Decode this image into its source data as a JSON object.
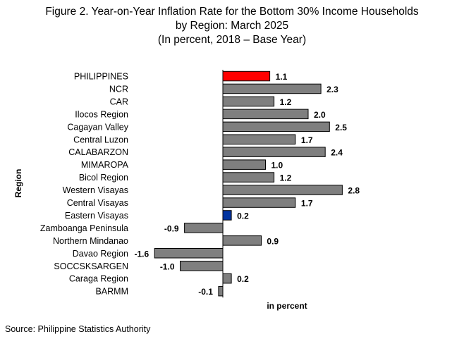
{
  "title_lines": [
    "Figure 2. Year-on-Year Inflation Rate for the Bottom 30% Income Households",
    "by Region: March 2025",
    "(In percent, 2018 – Base Year)"
  ],
  "source": "Source: Philippine Statistics Authority",
  "chart_data": {
    "type": "bar",
    "orientation": "horizontal",
    "title": "Figure 2. Year-on-Year Inflation Rate for the Bottom 30% Income Households by Region: March 2025 (In percent, 2018 – Base Year)",
    "xlabel": "in percent",
    "ylabel": "Region",
    "categories": [
      "PHILIPPINES",
      "NCR",
      "CAR",
      "Ilocos Region",
      "Cagayan Valley",
      "Central Luzon",
      "CALABARZON",
      "MIMAROPA",
      "Bicol Region",
      "Western Visayas",
      "Central Visayas",
      "Eastern Visayas",
      "Zamboanga Peninsula",
      "Northern Mindanao",
      "Davao Region",
      "SOCCSKSARGEN",
      "Caraga Region",
      "BARMM"
    ],
    "values": [
      1.1,
      2.3,
      1.2,
      2.0,
      2.5,
      1.7,
      2.4,
      1.0,
      1.2,
      2.8,
      1.7,
      0.2,
      -0.9,
      0.9,
      -1.6,
      -1.0,
      0.2,
      -0.1
    ],
    "value_labels": [
      "1.1",
      "2.3",
      "1.2",
      "2.0",
      "2.5",
      "1.7",
      "2.4",
      "1.0",
      "1.2",
      "2.8",
      "1.7",
      "0.2",
      "-0.9",
      "0.9",
      "-1.6",
      "-1.0",
      "0.2",
      "-0.1"
    ],
    "colors": {
      "default": "#7f7f7f",
      "PHILIPPINES": "#ff0000",
      "Eastern Visayas": "#0033a0",
      "outline": "#000000"
    },
    "grid": false,
    "legend": "none"
  }
}
